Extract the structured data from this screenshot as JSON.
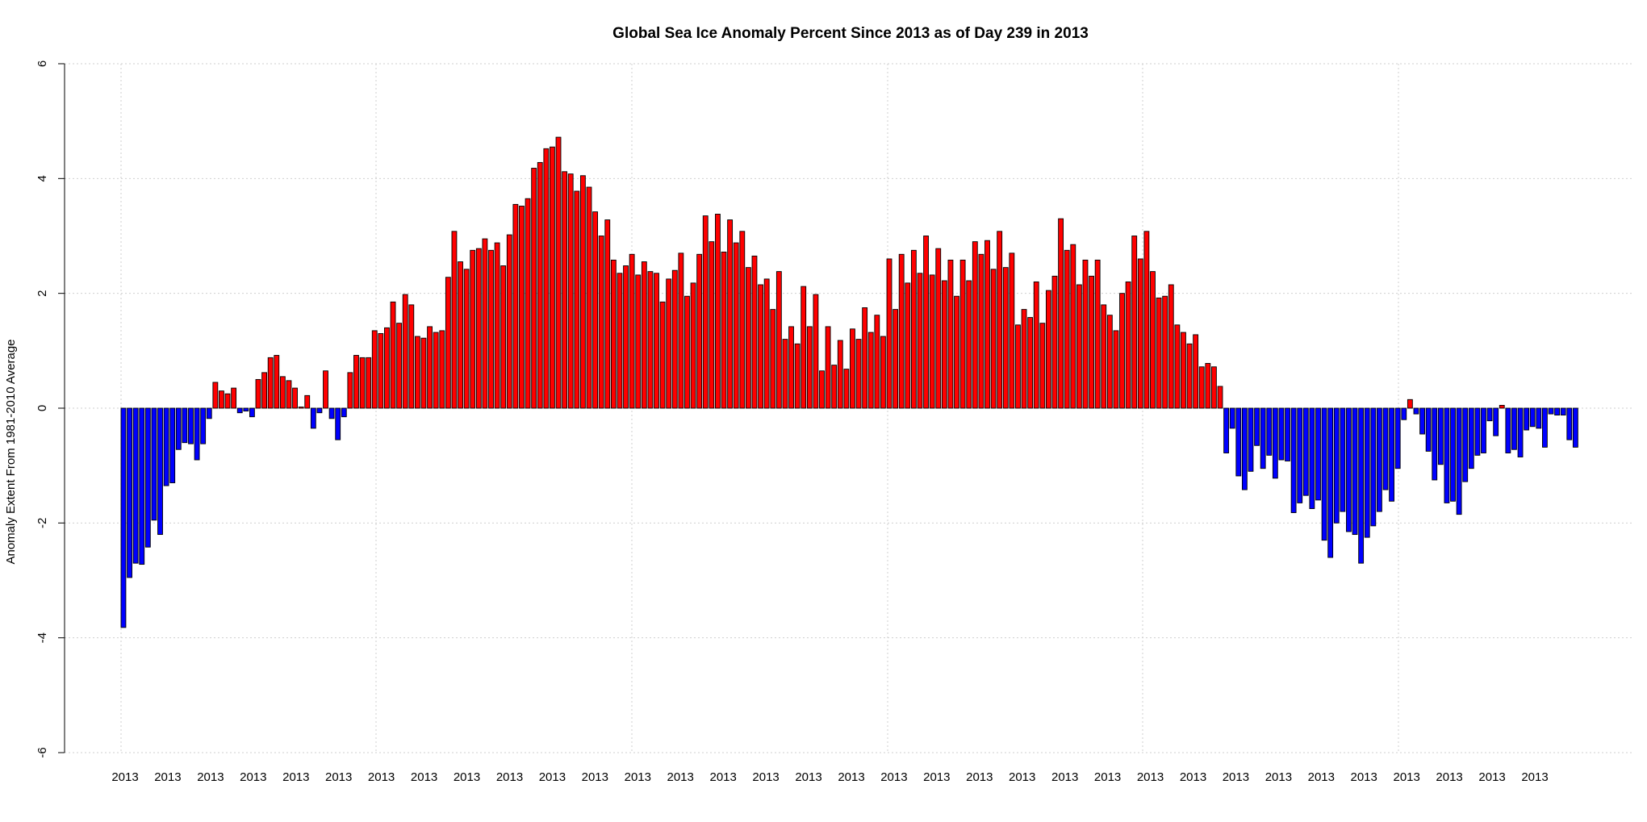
{
  "chart_data": {
    "type": "bar",
    "title": "Global Sea Ice Anomaly Percent Since  2013 as of Day 239 in 2013",
    "xlabel": "",
    "ylabel": "Anomaly Extent From 1981-2010 Average",
    "ylim": [
      -6,
      6
    ],
    "yticks": [
      -6,
      -4,
      -2,
      0,
      2,
      4,
      6
    ],
    "xtick_labels": [
      "2013",
      "2013",
      "2013",
      "2013",
      "2013",
      "2013",
      "2013",
      "2013",
      "2013",
      "2013",
      "2013",
      "2013",
      "2013",
      "2013",
      "2013",
      "2013",
      "2013",
      "2013",
      "2013",
      "2013",
      "2013",
      "2013",
      "2013",
      "2013",
      "2013",
      "2013",
      "2013",
      "2013",
      "2013",
      "2013",
      "2013",
      "2013",
      "2013",
      "2013"
    ],
    "grid": true,
    "colors": {
      "positive": "#ff0000",
      "negative": "#0000ff",
      "outline": "#000000"
    },
    "values": [
      -3.82,
      -2.95,
      -2.7,
      -2.72,
      -2.42,
      -1.95,
      -2.2,
      -1.35,
      -1.3,
      -0.72,
      -0.6,
      -0.62,
      -0.9,
      -0.62,
      -0.18,
      0.45,
      0.3,
      0.25,
      0.35,
      -0.08,
      -0.05,
      -0.15,
      0.5,
      0.62,
      0.88,
      0.92,
      0.55,
      0.48,
      0.35,
      0.02,
      0.22,
      -0.35,
      -0.08,
      0.65,
      -0.18,
      -0.55,
      -0.15,
      0.62,
      0.92,
      0.88,
      0.88,
      1.35,
      1.3,
      1.4,
      1.85,
      1.48,
      1.98,
      1.8,
      1.25,
      1.22,
      1.42,
      1.32,
      1.35,
      2.28,
      3.08,
      2.55,
      2.42,
      2.75,
      2.78,
      2.95,
      2.75,
      2.88,
      2.48,
      3.02,
      3.55,
      3.52,
      3.65,
      4.18,
      4.28,
      4.52,
      4.55,
      4.72,
      4.12,
      4.08,
      3.78,
      4.05,
      3.85,
      3.42,
      3.0,
      3.28,
      2.58,
      2.35,
      2.48,
      2.68,
      2.32,
      2.55,
      2.38,
      2.35,
      1.85,
      2.25,
      2.4,
      2.7,
      1.95,
      2.18,
      2.68,
      3.35,
      2.9,
      3.38,
      2.72,
      3.28,
      2.88,
      3.08,
      2.45,
      2.65,
      2.15,
      2.25,
      1.72,
      2.38,
      1.2,
      1.42,
      1.12,
      2.12,
      1.42,
      1.98,
      0.65,
      1.42,
      0.75,
      1.18,
      0.68,
      1.38,
      1.2,
      1.75,
      1.32,
      1.62,
      1.25,
      2.6,
      1.72,
      2.68,
      2.18,
      2.75,
      2.35,
      3.0,
      2.32,
      2.78,
      2.22,
      2.58,
      1.95,
      2.58,
      2.22,
      2.9,
      2.68,
      2.92,
      2.42,
      3.08,
      2.45,
      2.7,
      1.45,
      1.72,
      1.58,
      2.2,
      1.48,
      2.05,
      2.3,
      3.3,
      2.75,
      2.85,
      2.15,
      2.58,
      2.3,
      2.58,
      1.8,
      1.62,
      1.35,
      2.0,
      2.2,
      3.0,
      2.6,
      3.08,
      2.38,
      1.92,
      1.95,
      2.15,
      1.45,
      1.32,
      1.12,
      1.28,
      0.72,
      0.78,
      0.72,
      0.38,
      -0.78,
      -0.35,
      -1.18,
      -1.42,
      -1.1,
      -0.65,
      -1.05,
      -0.82,
      -1.22,
      -0.9,
      -0.92,
      -1.82,
      -1.65,
      -1.52,
      -1.75,
      -1.6,
      -2.3,
      -2.6,
      -2.0,
      -1.8,
      -2.15,
      -2.2,
      -2.7,
      -2.25,
      -2.05,
      -1.8,
      -1.42,
      -1.62,
      -1.05,
      -0.2,
      0.15,
      -0.1,
      -0.45,
      -0.75,
      -1.25,
      -0.98,
      -1.65,
      -1.62,
      -1.85,
      -1.28,
      -1.05,
      -0.82,
      -0.78,
      -0.22,
      -0.48,
      0.05,
      -0.78,
      -0.72,
      -0.85,
      -0.38,
      -0.32,
      -0.35,
      -0.68,
      -0.1,
      -0.12,
      -0.12,
      -0.55,
      -0.68
    ]
  }
}
